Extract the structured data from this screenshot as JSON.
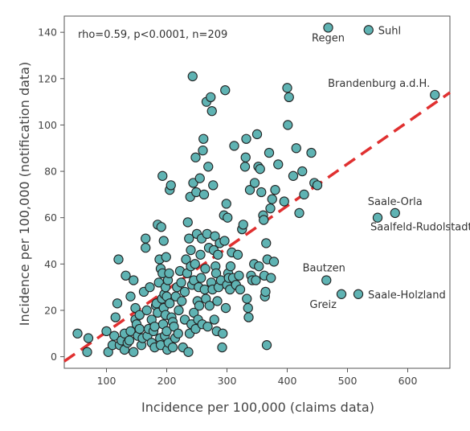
{
  "chart_data": {
    "type": "scatter",
    "title": "",
    "xlabel": "Incidence per 100,000 (claims data)",
    "ylabel": "Incidence per 100,000 (notification data)",
    "annotation": "rho=0.59, p<0.0001, n=209",
    "xlim": [
      30,
      670
    ],
    "ylim": [
      -5,
      147
    ],
    "xticks": [
      100,
      200,
      300,
      400,
      500,
      600
    ],
    "yticks": [
      0,
      20,
      40,
      60,
      80,
      100,
      120,
      140
    ],
    "grid": false,
    "regression_line": {
      "style": "dashed",
      "color": "#e03030",
      "from": [
        30,
        -2
      ],
      "to": [
        670,
        114
      ]
    },
    "colors": {
      "marker_fill": "#5fb3b3",
      "marker_stroke": "#222222",
      "line": "#e03030",
      "text": "#444444"
    },
    "labeled_points": [
      {
        "label": "Suhl",
        "x": 535,
        "y": 141
      },
      {
        "label": "Regen",
        "x": 468,
        "y": 142
      },
      {
        "label": "Brandenburg a.d.H.",
        "x": 645,
        "y": 113
      },
      {
        "label": "Saale-Orla",
        "x": 579,
        "y": 62
      },
      {
        "label": "Saalfeld-Rudolstadt",
        "x": 550,
        "y": 60
      },
      {
        "label": "Bautzen",
        "x": 465,
        "y": 33
      },
      {
        "label": "Greiz",
        "x": 490,
        "y": 27
      },
      {
        "label": "Saale-Holzland",
        "x": 518,
        "y": 27
      }
    ],
    "points": [
      [
        52,
        10
      ],
      [
        70,
        8
      ],
      [
        68,
        2
      ],
      [
        100,
        11
      ],
      [
        103,
        2
      ],
      [
        110,
        5
      ],
      [
        113,
        9
      ],
      [
        115,
        17
      ],
      [
        118,
        23
      ],
      [
        120,
        42
      ],
      [
        122,
        5
      ],
      [
        125,
        7
      ],
      [
        130,
        3
      ],
      [
        130,
        10
      ],
      [
        132,
        35
      ],
      [
        135,
        6
      ],
      [
        138,
        7
      ],
      [
        140,
        26
      ],
      [
        140,
        11
      ],
      [
        145,
        33
      ],
      [
        145,
        2
      ],
      [
        148,
        16
      ],
      [
        148,
        21
      ],
      [
        150,
        14
      ],
      [
        152,
        9
      ],
      [
        155,
        18
      ],
      [
        155,
        12
      ],
      [
        158,
        5
      ],
      [
        160,
        8
      ],
      [
        162,
        28
      ],
      [
        165,
        47
      ],
      [
        165,
        51
      ],
      [
        167,
        20
      ],
      [
        168,
        9
      ],
      [
        170,
        12
      ],
      [
        172,
        30
      ],
      [
        175,
        6
      ],
      [
        175,
        16
      ],
      [
        178,
        11
      ],
      [
        180,
        4
      ],
      [
        180,
        13
      ],
      [
        182,
        22
      ],
      [
        183,
        23
      ],
      [
        185,
        19
      ],
      [
        185,
        57
      ],
      [
        187,
        32
      ],
      [
        188,
        42
      ],
      [
        189,
        8
      ],
      [
        190,
        5
      ],
      [
        190,
        38
      ],
      [
        191,
        56
      ],
      [
        192,
        25
      ],
      [
        193,
        78
      ],
      [
        193,
        36
      ],
      [
        194,
        14
      ],
      [
        195,
        21
      ],
      [
        195,
        50
      ],
      [
        196,
        27
      ],
      [
        197,
        9
      ],
      [
        198,
        30
      ],
      [
        198,
        18
      ],
      [
        199,
        43
      ],
      [
        200,
        26
      ],
      [
        200,
        11
      ],
      [
        201,
        3
      ],
      [
        202,
        33
      ],
      [
        203,
        6
      ],
      [
        204,
        36
      ],
      [
        205,
        72
      ],
      [
        205,
        23
      ],
      [
        207,
        74
      ],
      [
        208,
        17
      ],
      [
        210,
        15
      ],
      [
        210,
        4
      ],
      [
        212,
        13
      ],
      [
        214,
        8
      ],
      [
        215,
        26
      ],
      [
        217,
        30
      ],
      [
        219,
        10
      ],
      [
        220,
        20
      ],
      [
        222,
        37
      ],
      [
        224,
        32
      ],
      [
        225,
        24
      ],
      [
        227,
        4
      ],
      [
        230,
        28
      ],
      [
        230,
        16
      ],
      [
        232,
        42
      ],
      [
        234,
        36
      ],
      [
        235,
        58
      ],
      [
        236,
        2
      ],
      [
        237,
        51
      ],
      [
        238,
        10
      ],
      [
        239,
        69
      ],
      [
        240,
        39
      ],
      [
        240,
        46
      ],
      [
        241,
        14
      ],
      [
        242,
        31
      ],
      [
        243,
        121
      ],
      [
        244,
        75
      ],
      [
        245,
        33
      ],
      [
        245,
        19
      ],
      [
        247,
        40
      ],
      [
        248,
        86
      ],
      [
        248,
        12
      ],
      [
        249,
        71
      ],
      [
        250,
        53
      ],
      [
        251,
        24
      ],
      [
        252,
        16
      ],
      [
        253,
        30
      ],
      [
        254,
        22
      ],
      [
        255,
        77
      ],
      [
        256,
        44
      ],
      [
        257,
        34
      ],
      [
        258,
        51
      ],
      [
        259,
        14
      ],
      [
        260,
        89
      ],
      [
        261,
        94
      ],
      [
        262,
        70
      ],
      [
        263,
        29
      ],
      [
        264,
        38
      ],
      [
        265,
        25
      ],
      [
        266,
        110
      ],
      [
        267,
        53
      ],
      [
        268,
        13
      ],
      [
        269,
        82
      ],
      [
        270,
        47
      ],
      [
        271,
        22
      ],
      [
        273,
        112
      ],
      [
        274,
        32
      ],
      [
        275,
        106
      ],
      [
        276,
        29
      ],
      [
        277,
        74
      ],
      [
        278,
        46
      ],
      [
        279,
        16
      ],
      [
        280,
        52
      ],
      [
        281,
        39
      ],
      [
        282,
        36
      ],
      [
        283,
        11
      ],
      [
        284,
        24
      ],
      [
        285,
        44
      ],
      [
        286,
        30
      ],
      [
        288,
        49
      ],
      [
        290,
        33
      ],
      [
        292,
        4
      ],
      [
        293,
        10
      ],
      [
        295,
        61
      ],
      [
        296,
        50
      ],
      [
        297,
        115
      ],
      [
        298,
        21
      ],
      [
        299,
        66
      ],
      [
        300,
        31
      ],
      [
        301,
        60
      ],
      [
        302,
        36
      ],
      [
        303,
        34
      ],
      [
        305,
        29
      ],
      [
        306,
        39
      ],
      [
        308,
        45
      ],
      [
        310,
        34
      ],
      [
        312,
        91
      ],
      [
        315,
        31
      ],
      [
        318,
        44
      ],
      [
        320,
        35
      ],
      [
        322,
        29
      ],
      [
        325,
        55
      ],
      [
        327,
        57
      ],
      [
        330,
        82
      ],
      [
        331,
        86
      ],
      [
        332,
        94
      ],
      [
        333,
        25
      ],
      [
        335,
        21
      ],
      [
        336,
        17
      ],
      [
        338,
        72
      ],
      [
        340,
        35
      ],
      [
        342,
        33
      ],
      [
        345,
        40
      ],
      [
        346,
        75
      ],
      [
        348,
        33
      ],
      [
        350,
        96
      ],
      [
        352,
        82
      ],
      [
        353,
        39
      ],
      [
        355,
        81
      ],
      [
        357,
        71
      ],
      [
        360,
        61
      ],
      [
        361,
        59
      ],
      [
        362,
        35
      ],
      [
        363,
        26
      ],
      [
        364,
        28
      ],
      [
        365,
        49
      ],
      [
        366,
        5
      ],
      [
        367,
        42
      ],
      [
        370,
        88
      ],
      [
        372,
        64
      ],
      [
        373,
        34
      ],
      [
        375,
        68
      ],
      [
        378,
        41
      ],
      [
        380,
        72
      ],
      [
        385,
        83
      ],
      [
        395,
        67
      ],
      [
        400,
        116
      ],
      [
        401,
        100
      ],
      [
        403,
        112
      ],
      [
        410,
        78
      ],
      [
        415,
        90
      ],
      [
        420,
        62
      ],
      [
        425,
        80
      ],
      [
        428,
        70
      ],
      [
        440,
        88
      ],
      [
        445,
        75
      ],
      [
        450,
        74
      ]
    ]
  }
}
